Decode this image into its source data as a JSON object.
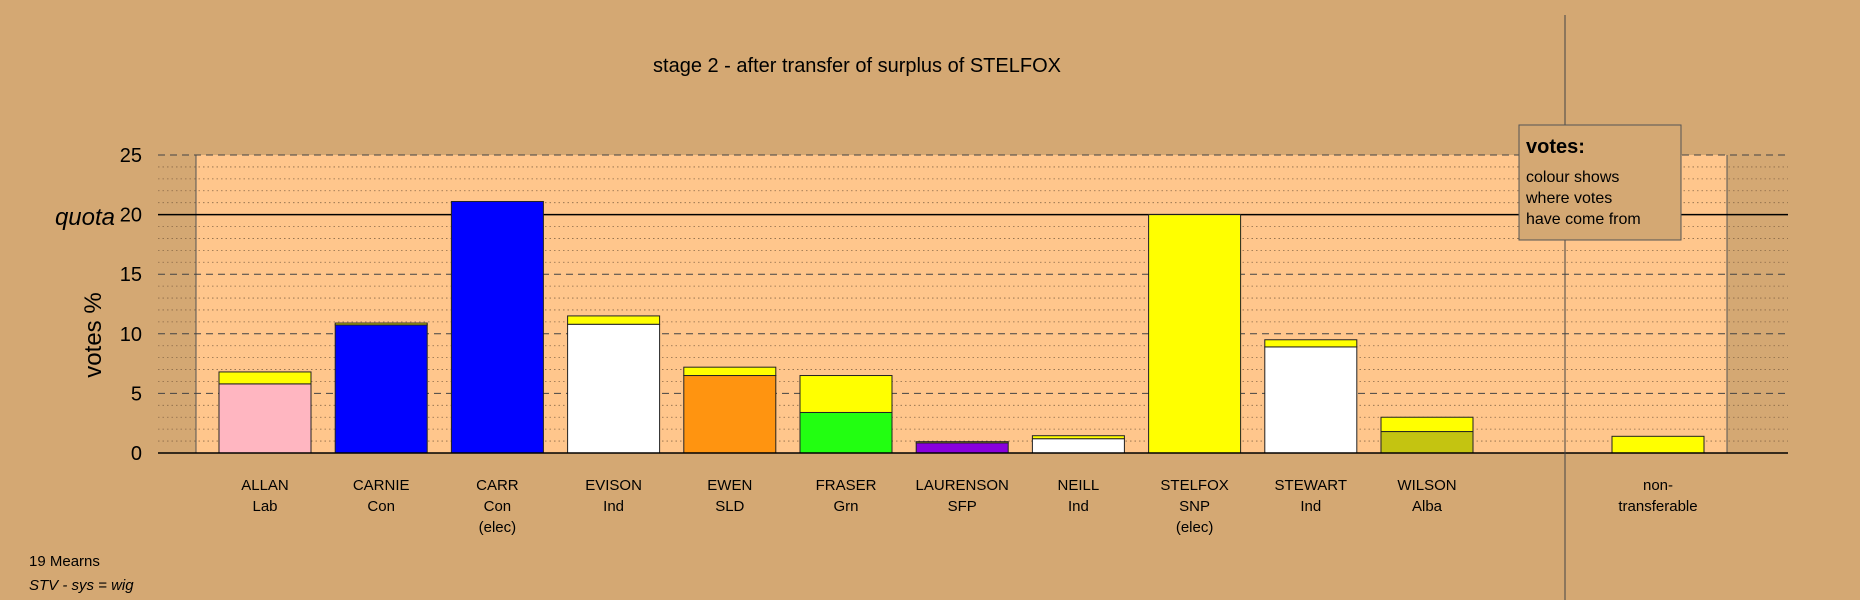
{
  "chart_data": {
    "type": "bar",
    "stacked": true,
    "title": "stage 2 - after transfer of surplus of STELFOX",
    "ylabel": "votes %",
    "ylim": [
      0,
      25
    ],
    "yticks": [
      0,
      5,
      10,
      15,
      20,
      25
    ],
    "quota": {
      "label": "quota",
      "value": 20
    },
    "grid": true,
    "legend": {
      "position": "top-right",
      "title": "votes:",
      "lines": [
        "colour shows",
        "where votes",
        "have come from"
      ]
    },
    "categories": [
      {
        "lines": [
          "ALLAN",
          "Lab"
        ],
        "segments": [
          {
            "value": 5.8,
            "color": "#ffb6c1"
          },
          {
            "value": 1.0,
            "color": "#ffff00"
          }
        ]
      },
      {
        "lines": [
          "CARNIE",
          "Con"
        ],
        "segments": [
          {
            "value": 10.75,
            "color": "#0000ff"
          },
          {
            "value": 0.15,
            "color": "#ffff00"
          }
        ]
      },
      {
        "lines": [
          "CARR",
          "Con",
          "(elec)"
        ],
        "segments": [
          {
            "value": 21.1,
            "color": "#0000ff"
          }
        ]
      },
      {
        "lines": [
          "EVISON",
          "Ind"
        ],
        "segments": [
          {
            "value": 10.8,
            "color": "#ffffff"
          },
          {
            "value": 0.7,
            "color": "#ffff00"
          }
        ]
      },
      {
        "lines": [
          "EWEN",
          "SLD"
        ],
        "segments": [
          {
            "value": 6.5,
            "color": "#ff9410"
          },
          {
            "value": 0.7,
            "color": "#ffff00"
          }
        ]
      },
      {
        "lines": [
          "FRASER",
          "Grn"
        ],
        "segments": [
          {
            "value": 3.4,
            "color": "#22ff11"
          },
          {
            "value": 3.1,
            "color": "#ffff00"
          }
        ]
      },
      {
        "lines": [
          "LAURENSON",
          "SFP"
        ],
        "segments": [
          {
            "value": 0.85,
            "color": "#8800dd"
          },
          {
            "value": 0.1,
            "color": "#ffff00"
          }
        ]
      },
      {
        "lines": [
          "NEILL",
          "Ind"
        ],
        "segments": [
          {
            "value": 1.2,
            "color": "#ffffff"
          },
          {
            "value": 0.25,
            "color": "#ffff00"
          }
        ]
      },
      {
        "lines": [
          "STELFOX",
          "SNP",
          "(elec)"
        ],
        "segments": [
          {
            "value": 20.0,
            "color": "#ffff00"
          }
        ]
      },
      {
        "lines": [
          "STEWART",
          "Ind"
        ],
        "segments": [
          {
            "value": 8.9,
            "color": "#ffffff"
          },
          {
            "value": 0.6,
            "color": "#ffff00"
          }
        ]
      },
      {
        "lines": [
          "WILSON",
          "Alba"
        ],
        "segments": [
          {
            "value": 1.8,
            "color": "#c4c411"
          },
          {
            "value": 1.2,
            "color": "#ffff00"
          }
        ]
      }
    ],
    "nontransferable": {
      "lines": [
        "non-",
        "transferable"
      ],
      "segments": [
        {
          "value": 1.4,
          "color": "#ffff00"
        }
      ]
    }
  },
  "footer": {
    "ward": "19 Mearns",
    "system": "STV - sys = wig"
  },
  "colors": {
    "background": "#d4a873",
    "plot_area": "#ffc68c"
  }
}
